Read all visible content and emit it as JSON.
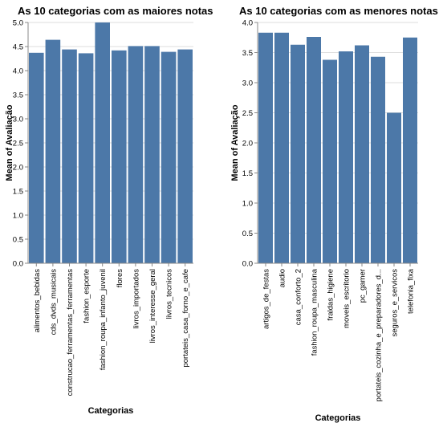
{
  "chart_data": [
    {
      "type": "bar",
      "title": "As 10 categorias com as maiores notas",
      "xlabel": "Categorias",
      "ylabel": "Mean of Avaliação",
      "ylim": [
        0,
        5
      ],
      "yticks": [
        0.0,
        0.5,
        1.0,
        1.5,
        2.0,
        2.5,
        3.0,
        3.5,
        4.0,
        4.5,
        5.0
      ],
      "grid": true,
      "color": "#4c78a8",
      "categories": [
        "alimentos_bebidas",
        "cds_dvds_musicais",
        "construcao_ferramentas_ferramentas",
        "fashion_esporte",
        "fashion_roupa_infanto_juvenil",
        "flores",
        "livros_importados",
        "livros_interesse_geral",
        "livros_tecnicos",
        "portateis_casa_forno_e_cafe"
      ],
      "values": [
        4.37,
        4.64,
        4.44,
        4.36,
        5.0,
        4.42,
        4.51,
        4.51,
        4.39,
        4.44
      ]
    },
    {
      "type": "bar",
      "title": "As 10 categorias com as menores notas",
      "xlabel": "Categorias",
      "ylabel": "Mean of Avaliação",
      "ylim": [
        0,
        4
      ],
      "yticks": [
        0.0,
        0.5,
        1.0,
        1.5,
        2.0,
        2.5,
        3.0,
        3.5,
        4.0
      ],
      "grid": true,
      "color": "#4c78a8",
      "categories": [
        "artigos_de_festas",
        "audio",
        "casa_conforto_2",
        "fashion_roupa_masculina",
        "fraldas_higiene",
        "moveis_escritorio",
        "pc_gamer",
        "portateis_cozinha_e_preparadores_d...",
        "seguros_e_servicos",
        "telefonia_fixa"
      ],
      "values": [
        3.83,
        3.83,
        3.63,
        3.76,
        3.38,
        3.52,
        3.62,
        3.43,
        2.5,
        3.75
      ]
    }
  ]
}
